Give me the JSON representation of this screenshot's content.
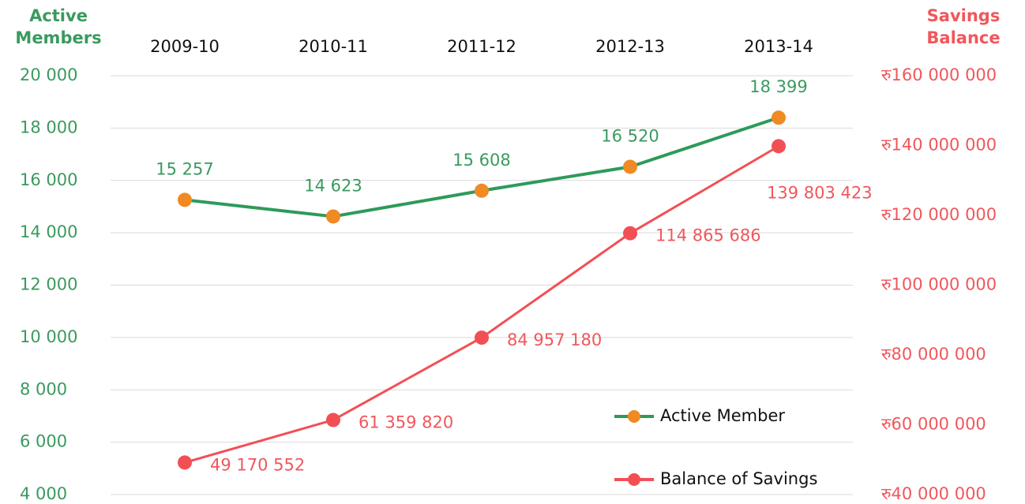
{
  "chart_data": {
    "type": "line",
    "categories": [
      "2009-10",
      "2010-11",
      "2011-12",
      "2012-13",
      "2013-14"
    ],
    "ylabel": "Active Members",
    "y2label": "Savings Balance",
    "ylim": [
      4000,
      20000
    ],
    "yticks": [
      {
        "value": 4000,
        "label": "4 000"
      },
      {
        "value": 6000,
        "label": "6 000"
      },
      {
        "value": 8000,
        "label": "8 000"
      },
      {
        "value": 10000,
        "label": "10 000"
      },
      {
        "value": 12000,
        "label": "12 000"
      },
      {
        "value": 14000,
        "label": "14 000"
      },
      {
        "value": 16000,
        "label": "16 000"
      },
      {
        "value": 18000,
        "label": "18 000"
      },
      {
        "value": 20000,
        "label": "20 000"
      }
    ],
    "y2lim": [
      40000000,
      160000000
    ],
    "y2ticks": [
      {
        "value": 40000000,
        "label": "रु40 000 000"
      },
      {
        "value": 60000000,
        "label": "रु60 000 000"
      },
      {
        "value": 80000000,
        "label": "रु80 000 000"
      },
      {
        "value": 100000000,
        "label": "रु100 000 000"
      },
      {
        "value": 120000000,
        "label": "रु120 000 000"
      },
      {
        "value": 140000000,
        "label": "रु140 000 000"
      },
      {
        "value": 160000000,
        "label": "रु160 000 000"
      }
    ],
    "grid": true,
    "legend": "lower right",
    "series": [
      {
        "name": "Active Member",
        "color": "#2e9a5a",
        "marker_color": "#f08a24",
        "axis": "y",
        "values": [
          15257,
          14623,
          15608,
          16520,
          18399
        ],
        "value_labels": [
          "15 257",
          "14 623",
          "15 608",
          "16 520",
          "18 399"
        ]
      },
      {
        "name": "Balance of Savings",
        "color": "#f24f55",
        "marker_color": "#f24f55",
        "axis": "y2",
        "values": [
          49170552,
          61359820,
          84957180,
          114865686,
          139803423
        ],
        "value_labels": [
          "49 170 552",
          "61 359 820",
          "84 957 180",
          "114 865 686",
          "139 803 423"
        ]
      }
    ]
  }
}
